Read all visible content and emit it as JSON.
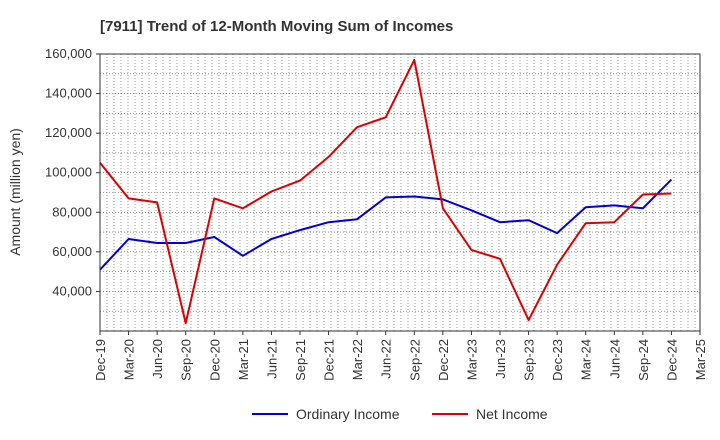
{
  "chart_data": {
    "type": "line",
    "title": "[7911]  Trend of 12-Month Moving Sum of Incomes",
    "xlabel": "",
    "ylabel": "Amount (million yen)",
    "ylim": [
      20000,
      160000
    ],
    "yticks": [
      40000,
      60000,
      80000,
      100000,
      120000,
      140000,
      160000
    ],
    "ytick_labels": [
      "40,000",
      "60,000",
      "80,000",
      "100,000",
      "120,000",
      "140,000",
      "160,000"
    ],
    "x": [
      "Dec-19",
      "Mar-20",
      "Jun-20",
      "Sep-20",
      "Dec-20",
      "Mar-21",
      "Jun-21",
      "Sep-21",
      "Dec-21",
      "Mar-22",
      "Jun-22",
      "Sep-22",
      "Dec-22",
      "Mar-23",
      "Jun-23",
      "Sep-23",
      "Dec-23",
      "Mar-24",
      "Jun-24",
      "Sep-24",
      "Dec-24",
      "Mar-25"
    ],
    "grid": true,
    "legend_position": "bottom",
    "series": [
      {
        "name": "Ordinary Income",
        "color": "#0000dd",
        "values": [
          51000,
          66500,
          64500,
          64500,
          67500,
          58000,
          66500,
          71000,
          75000,
          76500,
          87500,
          88000,
          86500,
          81000,
          75000,
          76000,
          69500,
          82500,
          83500,
          82000,
          96500,
          null
        ]
      },
      {
        "name": "Net Income",
        "color": "#dd0000",
        "values": [
          105000,
          87000,
          85000,
          24000,
          87000,
          82000,
          90500,
          96000,
          108000,
          123000,
          128000,
          157000,
          82000,
          61000,
          56500,
          25500,
          53500,
          74500,
          75000,
          89000,
          89500,
          null
        ]
      }
    ]
  }
}
